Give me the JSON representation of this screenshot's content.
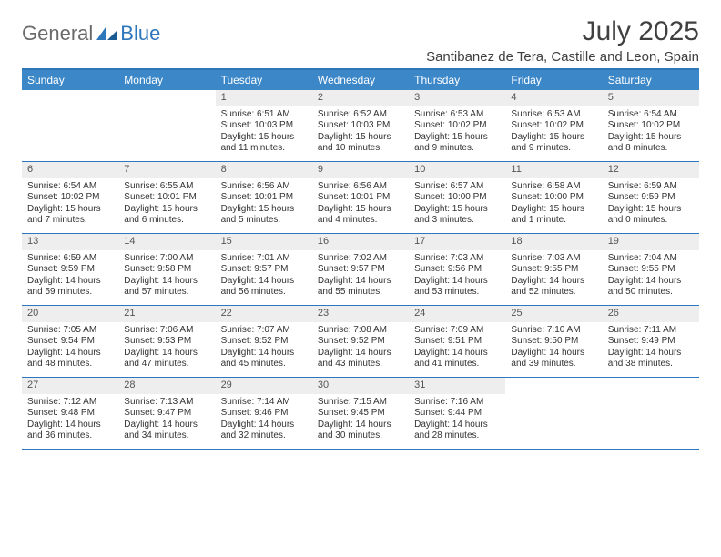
{
  "brand": {
    "part1": "General",
    "part2": "Blue"
  },
  "title": "July 2025",
  "location": "Santibanez de Tera, Castille and Leon, Spain",
  "colors": {
    "header_bg": "#3b87c8",
    "border": "#2f77bb",
    "daynum_bg": "#eeeeee",
    "text": "#333333",
    "brand_gray": "#6a6a6a",
    "brand_blue": "#2f77bb"
  },
  "day_headers": [
    "Sunday",
    "Monday",
    "Tuesday",
    "Wednesday",
    "Thursday",
    "Friday",
    "Saturday"
  ],
  "weeks": [
    [
      {
        "n": "",
        "sr": "",
        "ss": "",
        "dl": ""
      },
      {
        "n": "",
        "sr": "",
        "ss": "",
        "dl": ""
      },
      {
        "n": "1",
        "sr": "Sunrise: 6:51 AM",
        "ss": "Sunset: 10:03 PM",
        "dl": "Daylight: 15 hours and 11 minutes."
      },
      {
        "n": "2",
        "sr": "Sunrise: 6:52 AM",
        "ss": "Sunset: 10:03 PM",
        "dl": "Daylight: 15 hours and 10 minutes."
      },
      {
        "n": "3",
        "sr": "Sunrise: 6:53 AM",
        "ss": "Sunset: 10:02 PM",
        "dl": "Daylight: 15 hours and 9 minutes."
      },
      {
        "n": "4",
        "sr": "Sunrise: 6:53 AM",
        "ss": "Sunset: 10:02 PM",
        "dl": "Daylight: 15 hours and 9 minutes."
      },
      {
        "n": "5",
        "sr": "Sunrise: 6:54 AM",
        "ss": "Sunset: 10:02 PM",
        "dl": "Daylight: 15 hours and 8 minutes."
      }
    ],
    [
      {
        "n": "6",
        "sr": "Sunrise: 6:54 AM",
        "ss": "Sunset: 10:02 PM",
        "dl": "Daylight: 15 hours and 7 minutes."
      },
      {
        "n": "7",
        "sr": "Sunrise: 6:55 AM",
        "ss": "Sunset: 10:01 PM",
        "dl": "Daylight: 15 hours and 6 minutes."
      },
      {
        "n": "8",
        "sr": "Sunrise: 6:56 AM",
        "ss": "Sunset: 10:01 PM",
        "dl": "Daylight: 15 hours and 5 minutes."
      },
      {
        "n": "9",
        "sr": "Sunrise: 6:56 AM",
        "ss": "Sunset: 10:01 PM",
        "dl": "Daylight: 15 hours and 4 minutes."
      },
      {
        "n": "10",
        "sr": "Sunrise: 6:57 AM",
        "ss": "Sunset: 10:00 PM",
        "dl": "Daylight: 15 hours and 3 minutes."
      },
      {
        "n": "11",
        "sr": "Sunrise: 6:58 AM",
        "ss": "Sunset: 10:00 PM",
        "dl": "Daylight: 15 hours and 1 minute."
      },
      {
        "n": "12",
        "sr": "Sunrise: 6:59 AM",
        "ss": "Sunset: 9:59 PM",
        "dl": "Daylight: 15 hours and 0 minutes."
      }
    ],
    [
      {
        "n": "13",
        "sr": "Sunrise: 6:59 AM",
        "ss": "Sunset: 9:59 PM",
        "dl": "Daylight: 14 hours and 59 minutes."
      },
      {
        "n": "14",
        "sr": "Sunrise: 7:00 AM",
        "ss": "Sunset: 9:58 PM",
        "dl": "Daylight: 14 hours and 57 minutes."
      },
      {
        "n": "15",
        "sr": "Sunrise: 7:01 AM",
        "ss": "Sunset: 9:57 PM",
        "dl": "Daylight: 14 hours and 56 minutes."
      },
      {
        "n": "16",
        "sr": "Sunrise: 7:02 AM",
        "ss": "Sunset: 9:57 PM",
        "dl": "Daylight: 14 hours and 55 minutes."
      },
      {
        "n": "17",
        "sr": "Sunrise: 7:03 AM",
        "ss": "Sunset: 9:56 PM",
        "dl": "Daylight: 14 hours and 53 minutes."
      },
      {
        "n": "18",
        "sr": "Sunrise: 7:03 AM",
        "ss": "Sunset: 9:55 PM",
        "dl": "Daylight: 14 hours and 52 minutes."
      },
      {
        "n": "19",
        "sr": "Sunrise: 7:04 AM",
        "ss": "Sunset: 9:55 PM",
        "dl": "Daylight: 14 hours and 50 minutes."
      }
    ],
    [
      {
        "n": "20",
        "sr": "Sunrise: 7:05 AM",
        "ss": "Sunset: 9:54 PM",
        "dl": "Daylight: 14 hours and 48 minutes."
      },
      {
        "n": "21",
        "sr": "Sunrise: 7:06 AM",
        "ss": "Sunset: 9:53 PM",
        "dl": "Daylight: 14 hours and 47 minutes."
      },
      {
        "n": "22",
        "sr": "Sunrise: 7:07 AM",
        "ss": "Sunset: 9:52 PM",
        "dl": "Daylight: 14 hours and 45 minutes."
      },
      {
        "n": "23",
        "sr": "Sunrise: 7:08 AM",
        "ss": "Sunset: 9:52 PM",
        "dl": "Daylight: 14 hours and 43 minutes."
      },
      {
        "n": "24",
        "sr": "Sunrise: 7:09 AM",
        "ss": "Sunset: 9:51 PM",
        "dl": "Daylight: 14 hours and 41 minutes."
      },
      {
        "n": "25",
        "sr": "Sunrise: 7:10 AM",
        "ss": "Sunset: 9:50 PM",
        "dl": "Daylight: 14 hours and 39 minutes."
      },
      {
        "n": "26",
        "sr": "Sunrise: 7:11 AM",
        "ss": "Sunset: 9:49 PM",
        "dl": "Daylight: 14 hours and 38 minutes."
      }
    ],
    [
      {
        "n": "27",
        "sr": "Sunrise: 7:12 AM",
        "ss": "Sunset: 9:48 PM",
        "dl": "Daylight: 14 hours and 36 minutes."
      },
      {
        "n": "28",
        "sr": "Sunrise: 7:13 AM",
        "ss": "Sunset: 9:47 PM",
        "dl": "Daylight: 14 hours and 34 minutes."
      },
      {
        "n": "29",
        "sr": "Sunrise: 7:14 AM",
        "ss": "Sunset: 9:46 PM",
        "dl": "Daylight: 14 hours and 32 minutes."
      },
      {
        "n": "30",
        "sr": "Sunrise: 7:15 AM",
        "ss": "Sunset: 9:45 PM",
        "dl": "Daylight: 14 hours and 30 minutes."
      },
      {
        "n": "31",
        "sr": "Sunrise: 7:16 AM",
        "ss": "Sunset: 9:44 PM",
        "dl": "Daylight: 14 hours and 28 minutes."
      },
      {
        "n": "",
        "sr": "",
        "ss": "",
        "dl": ""
      },
      {
        "n": "",
        "sr": "",
        "ss": "",
        "dl": ""
      }
    ]
  ]
}
